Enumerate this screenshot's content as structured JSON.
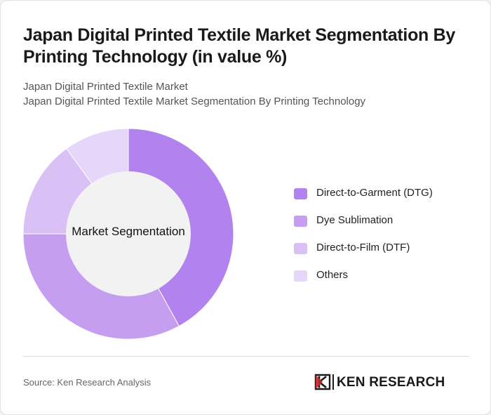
{
  "title": "Japan Digital Printed Textile Market Segmentation By Printing Technology (in value %)",
  "subtitle_line1": "Japan Digital Printed Textile Market",
  "subtitle_line2": "Japan Digital Printed Textile Market Segmentation By Printing Technology",
  "source": "Source: Ken Research Analysis",
  "logo_text": "KEN RESEARCH",
  "chart_data": {
    "type": "pie",
    "variant": "donut",
    "center_label": "Market Segmentation",
    "legend_position": "right",
    "categories": [
      "Direct-to-Garment (DTG)",
      "Dye Sublimation",
      "Direct-to-Film (DTF)",
      "Others"
    ],
    "values": [
      42,
      33,
      15,
      10
    ],
    "colors": [
      "#b282ee",
      "#c69ef0",
      "#d9c0f5",
      "#e6d6f9"
    ]
  }
}
